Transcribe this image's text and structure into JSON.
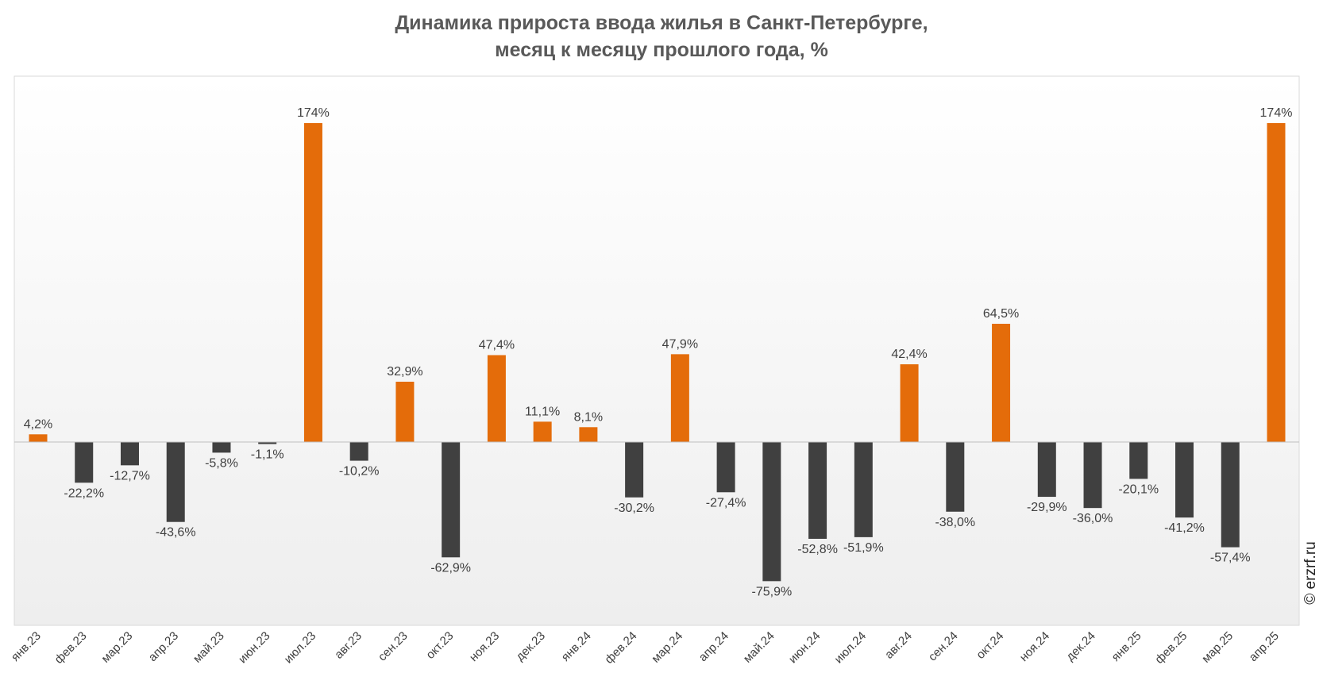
{
  "chart_data": {
    "type": "bar",
    "title_lines": [
      "Динамика прироста ввода жилья в Санкт-Петербурге,",
      "месяц к месяцу прошлого года, %"
    ],
    "categories": [
      "янв.23",
      "фев.23",
      "мар.23",
      "апр.23",
      "май.23",
      "июн.23",
      "июл.23",
      "авг.23",
      "сен.23",
      "окт.23",
      "ноя.23",
      "дек.23",
      "янв.24",
      "фев.24",
      "мар.24",
      "апр.24",
      "май.24",
      "июн.24",
      "июл.24",
      "авг.24",
      "сен.24",
      "окт.24",
      "ноя.24",
      "дек.24",
      "янв.25",
      "фев.25",
      "мар.25",
      "апр.25"
    ],
    "values": [
      4.2,
      -22.2,
      -12.7,
      -43.6,
      -5.8,
      -1.1,
      174,
      -10.2,
      32.9,
      -62.9,
      47.4,
      11.1,
      8.1,
      -30.2,
      47.9,
      -27.4,
      -75.9,
      -52.8,
      -51.9,
      42.4,
      -38.0,
      64.5,
      -29.9,
      -36.0,
      -20.1,
      -41.2,
      -57.4,
      174
    ],
    "data_labels": [
      "4,2%",
      "-22,2%",
      "-12,7%",
      "-43,6%",
      "-5,8%",
      "-1,1%",
      "174%",
      "-10,2%",
      "32,9%",
      "-62,9%",
      "47,4%",
      "11,1%",
      "8,1%",
      "-30,2%",
      "47,9%",
      "-27,4%",
      "-75,9%",
      "-52,8%",
      "-51,9%",
      "42,4%",
      "-38,0%",
      "64,5%",
      "-29,9%",
      "-36,0%",
      "-20,1%",
      "-41,2%",
      "-57,4%",
      "174%"
    ],
    "xlabel": "",
    "ylabel": "",
    "ylim": [
      -113,
      186
    ],
    "grid": false,
    "colors": {
      "positive": "#e46c0a",
      "negative": "#404040"
    }
  },
  "watermark": "© erzrf.ru"
}
